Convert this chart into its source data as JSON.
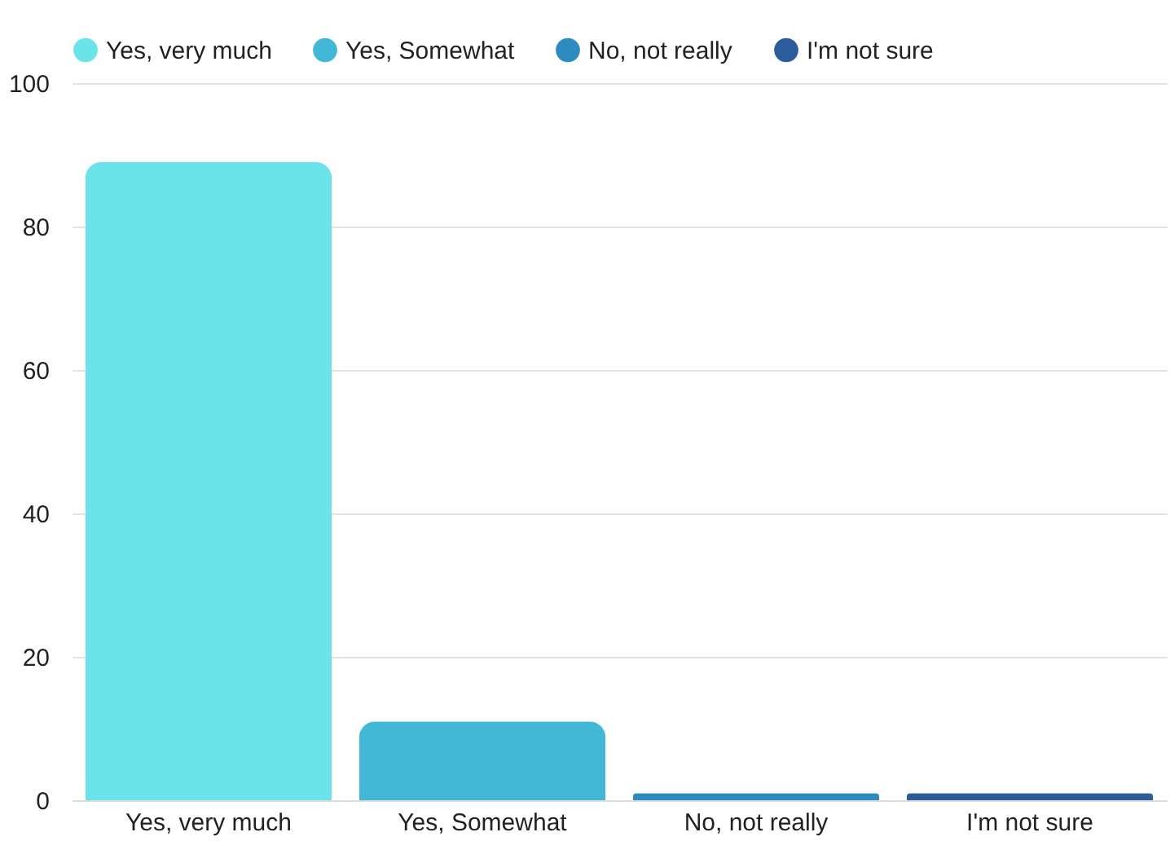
{
  "chart_data": {
    "type": "bar",
    "stacked": true,
    "categories": [
      "Yes, very much",
      "Yes, Somewhat",
      "No, not really",
      "I'm not sure"
    ],
    "series": [
      {
        "name": "Yes, very much",
        "color": "#6ae4e8",
        "values": [
          89,
          null,
          null,
          null
        ]
      },
      {
        "name": "Yes, Somewhat",
        "color": "#42b7d6",
        "values": [
          null,
          11,
          null,
          null
        ]
      },
      {
        "name": "No, not really",
        "color": "#2e8bbf",
        "values": [
          null,
          null,
          1,
          null
        ]
      },
      {
        "name": "I'm not sure",
        "color": "#2c5d9a",
        "values": [
          null,
          null,
          null,
          1
        ]
      }
    ],
    "ylim": [
      0,
      100
    ],
    "yticks": [
      0,
      20,
      40,
      60,
      80,
      100
    ],
    "grid": "y",
    "legend": "top"
  }
}
